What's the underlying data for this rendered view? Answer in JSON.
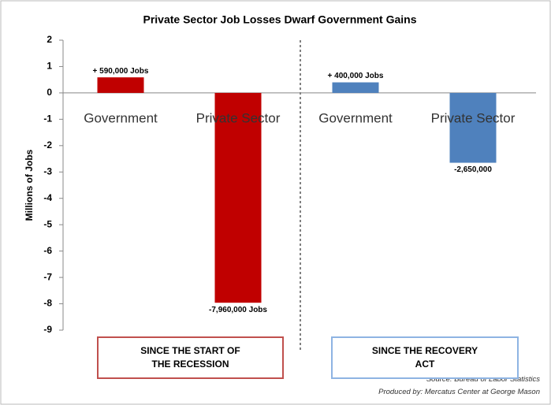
{
  "chart_data": {
    "type": "bar",
    "title": "Private Sector Job Losses Dwarf Government Gains",
    "y_label": "Millions of Jobs",
    "categories": [
      "Government",
      "Private Sector",
      "Government",
      "Private Sector"
    ],
    "values": [
      0.59,
      -7.96,
      0.4,
      -2.65
    ],
    "value_labels": [
      "+ 590,000 Jobs",
      "-7,960,000 Jobs",
      "+ 400,000 Jobs",
      "-2,650,000"
    ],
    "colors": [
      "#c00000",
      "#c00000",
      "#4f81bd",
      "#4f81bd"
    ],
    "ylim": [
      -9,
      2
    ],
    "yticks": [
      -9,
      -8,
      -7,
      -6,
      -5,
      -4,
      -3,
      -2,
      -1,
      0,
      1,
      2
    ],
    "groups": [
      {
        "label": "SINCE THE START OF THE RECESSION",
        "color": "#c0504d"
      },
      {
        "label": "SINCE THE RECOVERY ACT",
        "color": "#8eb4e3"
      }
    ],
    "source": "Source: Bureau of Labor Statistics",
    "credit": "Produced by: Mercatus Center at George Mason"
  }
}
